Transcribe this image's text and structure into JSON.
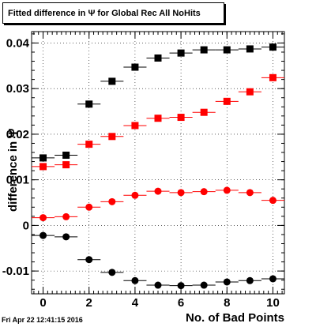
{
  "page": {
    "title": "Fitted difference in  Ψ  for Global Rec All NoHits",
    "datestamp": "Fri Apr 22 12:41:15 2016"
  },
  "chart_data": {
    "type": "scatter",
    "title": "Fitted difference in  Ψ  for Global Rec All NoHits",
    "xlabel": "No. of Bad Points",
    "ylabel": "difference in Ψ",
    "xlim": [
      -0.5,
      10.5
    ],
    "ylim": [
      -0.015,
      0.0425
    ],
    "x_ticks": [
      0,
      2,
      4,
      6,
      8,
      10
    ],
    "y_ticks": [
      -0.01,
      0,
      0.01,
      0.02,
      0.03,
      0.04
    ],
    "y_tick_labels": [
      "-0.01",
      "0",
      "0.01",
      "0.02",
      "0.03",
      "0.04"
    ],
    "x_tick_labels": [
      "0",
      "2",
      "4",
      "6",
      "8",
      "10"
    ],
    "grid": true,
    "x": [
      0,
      1,
      2,
      3,
      4,
      5,
      6,
      7,
      8,
      9,
      10
    ],
    "series": [
      {
        "marker": "square",
        "color": "#000000",
        "values": [
          0.0148,
          0.0154,
          0.0266,
          0.0316,
          0.0347,
          0.0367,
          0.0378,
          0.0385,
          0.0385,
          0.0387,
          0.0391
        ]
      },
      {
        "marker": "square",
        "color": "#ff0000",
        "values": [
          0.0129,
          0.0133,
          0.0178,
          0.0195,
          0.0219,
          0.0235,
          0.0237,
          0.0248,
          0.0272,
          0.0293,
          0.0324
        ]
      },
      {
        "marker": "circle",
        "color": "#ff0000",
        "values": [
          0.0017,
          0.0019,
          0.004,
          0.0052,
          0.0066,
          0.0075,
          0.0072,
          0.0074,
          0.0077,
          0.0072,
          0.0055
        ]
      },
      {
        "marker": "circle",
        "color": "#000000",
        "values": [
          -0.0022,
          -0.0025,
          -0.0075,
          -0.0103,
          -0.0121,
          -0.0131,
          -0.0132,
          -0.0131,
          -0.0124,
          -0.0121,
          -0.0117
        ]
      }
    ]
  }
}
